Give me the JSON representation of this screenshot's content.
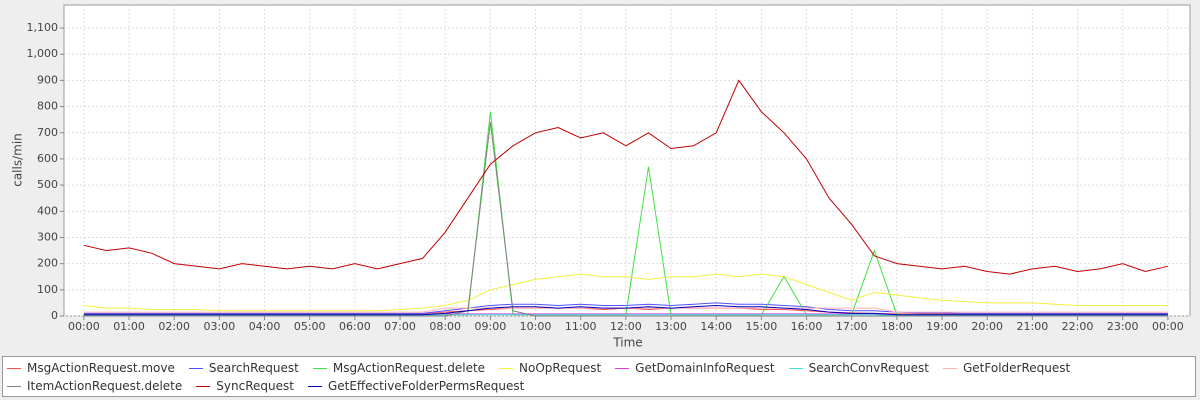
{
  "chart_data": {
    "type": "line",
    "x_label": "Time",
    "y_label": "calls/min",
    "xlim": [
      -0.44,
      24.49
    ],
    "ylim": [
      0,
      1188
    ],
    "grid": true,
    "xticks": [
      {
        "value": 0,
        "label": "00:00"
      },
      {
        "value": 1,
        "label": "01:00"
      },
      {
        "value": 2,
        "label": "02:00"
      },
      {
        "value": 3,
        "label": "03:00"
      },
      {
        "value": 4,
        "label": "04:00"
      },
      {
        "value": 5,
        "label": "05:00"
      },
      {
        "value": 6,
        "label": "06:00"
      },
      {
        "value": 7,
        "label": "07:00"
      },
      {
        "value": 8,
        "label": "08:00"
      },
      {
        "value": 9,
        "label": "09:00"
      },
      {
        "value": 10,
        "label": "10:00"
      },
      {
        "value": 11,
        "label": "11:00"
      },
      {
        "value": 12,
        "label": "12:00"
      },
      {
        "value": 13,
        "label": "13:00"
      },
      {
        "value": 14,
        "label": "14:00"
      },
      {
        "value": 15,
        "label": "15:00"
      },
      {
        "value": 16,
        "label": "16:00"
      },
      {
        "value": 17,
        "label": "17:00"
      },
      {
        "value": 18,
        "label": "18:00"
      },
      {
        "value": 19,
        "label": "19:00"
      },
      {
        "value": 20,
        "label": "20:00"
      },
      {
        "value": 21,
        "label": "21:00"
      },
      {
        "value": 22,
        "label": "22:00"
      },
      {
        "value": 23,
        "label": "23:00"
      },
      {
        "value": 24,
        "label": "00:00"
      }
    ],
    "yticks": [
      0,
      100,
      200,
      300,
      400,
      500,
      600,
      700,
      800,
      900,
      {
        "value": 1000,
        "label": "1,000"
      },
      {
        "value": 1100,
        "label": "1,100"
      }
    ],
    "x": [
      0,
      0.5,
      1,
      1.5,
      2,
      2.5,
      3,
      3.5,
      4,
      4.5,
      5,
      5.5,
      6,
      6.5,
      7,
      7.5,
      8,
      8.5,
      9,
      9.5,
      10,
      10.5,
      11,
      11.5,
      12,
      12.5,
      13,
      13.5,
      14,
      14.5,
      15,
      15.5,
      16,
      16.5,
      17,
      17.5,
      18,
      18.5,
      19,
      19.5,
      20,
      20.5,
      21,
      21.5,
      22,
      22.5,
      23,
      23.5,
      24
    ],
    "series": [
      {
        "name": "MsgActionRequest.move",
        "color": "#ff5050",
        "values": [
          8,
          8,
          8,
          8,
          8,
          8,
          8,
          8,
          8,
          8,
          8,
          8,
          8,
          8,
          8,
          8,
          15,
          20,
          25,
          30,
          30,
          30,
          30,
          25,
          30,
          25,
          30,
          30,
          30,
          30,
          25,
          25,
          20,
          15,
          12,
          10,
          8,
          8,
          8,
          8,
          8,
          8,
          8,
          8,
          8,
          8,
          8,
          8,
          8
        ]
      },
      {
        "name": "SearchRequest",
        "color": "#5050ff",
        "values": [
          10,
          10,
          10,
          10,
          10,
          10,
          10,
          10,
          10,
          10,
          10,
          10,
          10,
          10,
          10,
          10,
          20,
          30,
          40,
          45,
          45,
          40,
          45,
          40,
          40,
          45,
          40,
          45,
          50,
          45,
          45,
          40,
          35,
          25,
          20,
          20,
          15,
          12,
          12,
          10,
          10,
          10,
          10,
          10,
          10,
          10,
          10,
          10,
          10
        ]
      },
      {
        "name": "MsgActionRequest.delete",
        "color": "#40e040",
        "values": [
          5,
          5,
          5,
          5,
          5,
          5,
          5,
          5,
          5,
          5,
          5,
          5,
          5,
          5,
          5,
          5,
          5,
          5,
          780,
          5,
          5,
          5,
          5,
          5,
          5,
          570,
          5,
          5,
          5,
          5,
          5,
          150,
          5,
          5,
          5,
          250,
          5,
          5,
          5,
          5,
          5,
          5,
          5,
          5,
          5,
          5,
          5,
          5,
          5
        ]
      },
      {
        "name": "NoOpRequest",
        "color": "#f0f040",
        "values": [
          40,
          30,
          30,
          25,
          25,
          25,
          20,
          20,
          20,
          20,
          20,
          20,
          20,
          20,
          25,
          30,
          40,
          60,
          100,
          120,
          140,
          150,
          160,
          150,
          150,
          140,
          150,
          150,
          160,
          150,
          160,
          150,
          120,
          90,
          60,
          90,
          80,
          70,
          60,
          55,
          50,
          50,
          50,
          45,
          40,
          40,
          40,
          40,
          40
        ]
      },
      {
        "name": "GetDomainInfoRequest",
        "color": "#e040e0",
        "values": [
          3,
          3,
          3,
          3,
          3,
          3,
          3,
          3,
          3,
          3,
          3,
          3,
          3,
          3,
          3,
          3,
          8,
          8,
          8,
          8,
          8,
          8,
          8,
          8,
          8,
          8,
          8,
          8,
          8,
          8,
          8,
          8,
          8,
          8,
          8,
          8,
          3,
          3,
          3,
          3,
          3,
          3,
          3,
          3,
          3,
          3,
          3,
          3,
          3
        ]
      },
      {
        "name": "SearchConvRequest",
        "color": "#40e0e0",
        "values": [
          2,
          2,
          2,
          2,
          2,
          2,
          2,
          2,
          2,
          2,
          2,
          2,
          2,
          2,
          2,
          2,
          5,
          5,
          5,
          5,
          5,
          5,
          5,
          5,
          5,
          5,
          5,
          5,
          5,
          5,
          5,
          5,
          5,
          5,
          5,
          5,
          2,
          2,
          2,
          2,
          2,
          2,
          2,
          2,
          2,
          2,
          2,
          2,
          2
        ]
      },
      {
        "name": "GetFolderRequest",
        "color": "#ffb0b0",
        "values": [
          15,
          15,
          15,
          15,
          15,
          15,
          15,
          15,
          15,
          15,
          15,
          15,
          15,
          15,
          15,
          15,
          30,
          30,
          30,
          30,
          30,
          30,
          30,
          30,
          30,
          30,
          30,
          30,
          30,
          30,
          30,
          30,
          30,
          30,
          30,
          30,
          15,
          15,
          15,
          15,
          15,
          15,
          15,
          15,
          15,
          15,
          15,
          15,
          15
        ]
      },
      {
        "name": "ItemActionRequest.delete",
        "color": "#808080",
        "values": [
          0,
          0,
          0,
          0,
          0,
          0,
          0,
          0,
          0,
          0,
          0,
          0,
          0,
          0,
          0,
          0,
          0,
          20,
          740,
          20,
          0,
          0,
          0,
          0,
          0,
          0,
          0,
          0,
          0,
          0,
          0,
          0,
          0,
          0,
          0,
          0,
          0,
          0,
          0,
          0,
          0,
          0,
          0,
          0,
          0,
          0,
          0,
          0,
          0
        ]
      },
      {
        "name": "SyncRequest",
        "color": "#c00000",
        "values": [
          270,
          250,
          260,
          240,
          200,
          190,
          180,
          200,
          190,
          180,
          190,
          180,
          200,
          180,
          200,
          220,
          320,
          450,
          580,
          650,
          700,
          720,
          680,
          700,
          650,
          700,
          640,
          650,
          700,
          900,
          780,
          700,
          600,
          450,
          350,
          230,
          200,
          190,
          180,
          190,
          170,
          160,
          180,
          190,
          170,
          180,
          200,
          170,
          190
        ]
      },
      {
        "name": "GetEffectiveFolderPermsRequest",
        "color": "#0000c0",
        "values": [
          5,
          5,
          5,
          5,
          5,
          5,
          5,
          5,
          5,
          5,
          5,
          5,
          5,
          5,
          5,
          5,
          10,
          20,
          30,
          35,
          35,
          30,
          35,
          30,
          30,
          35,
          30,
          35,
          40,
          35,
          35,
          30,
          25,
          15,
          10,
          10,
          5,
          5,
          5,
          5,
          5,
          5,
          5,
          5,
          5,
          5,
          5,
          5,
          5
        ]
      }
    ]
  }
}
